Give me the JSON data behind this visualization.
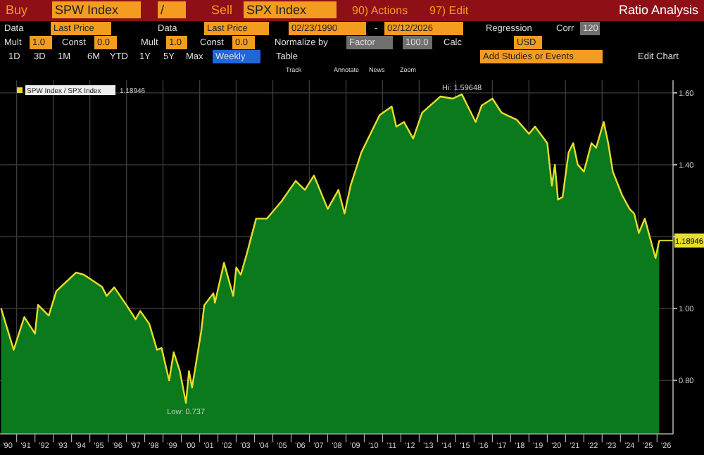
{
  "chart_data": {
    "type": "area",
    "title": "Ratio Analysis",
    "annotations": [
      "Buy",
      "SPW Index",
      "/",
      "Sell",
      "SPX Index",
      "90) Actions",
      "97) Edit",
      "Data",
      "Last Price",
      "Data",
      "Last Price",
      "02/23/1990",
      "-",
      "02/12/2026",
      "Regression",
      "Corr",
      "120",
      "Mult",
      "1.0",
      "Const",
      "0.0",
      "Mult",
      "1.0",
      "Const",
      "0.0",
      "Normalize by",
      "Factor",
      "100.0",
      "Calc",
      "USD",
      "1D",
      "3D",
      "1M",
      "6M",
      "YTD",
      "1Y",
      "5Y",
      "Max",
      "Weekly",
      "Table",
      "Add Studies or Events",
      "Edit Chart",
      "Track",
      "Annotate",
      "News",
      "Zoom",
      "1.18946",
      {
        "text": "Low: 0.737",
        "x": "2000-04",
        "y": 0.737
      },
      {
        "text": "Hi: 1.59648",
        "x": "2015-05",
        "y": 1.596
      },
      {
        "text": "1.18946",
        "x": "2026-02-12",
        "y": 1.189
      }
    ],
    "legend": "top left",
    "grid": true,
    "xlim": [
      "1990-02-01",
      "2026-11-15"
    ],
    "xticks": [
      {
        "value": "1990-07-01",
        "label": "'90"
      },
      {
        "value": "1991-07-01",
        "label": "'91"
      },
      {
        "value": "1992-07-01",
        "label": "'92"
      },
      {
        "value": "1993-07-01",
        "label": "'93"
      },
      {
        "value": "1994-07-01",
        "label": "'94"
      },
      {
        "value": "1995-07-01",
        "label": "'95"
      },
      {
        "value": "1996-07-01",
        "label": "'96"
      },
      {
        "value": "1997-07-01",
        "label": "'97"
      },
      {
        "value": "1998-07-01",
        "label": "'98"
      },
      {
        "value": "1999-07-01",
        "label": "'99"
      },
      {
        "value": "2000-07-01",
        "label": "'00"
      },
      {
        "value": "2001-07-01",
        "label": "'01"
      },
      {
        "value": "2002-07-01",
        "label": "'02"
      },
      {
        "value": "2003-07-01",
        "label": "'03"
      },
      {
        "value": "2004-07-01",
        "label": "'04"
      },
      {
        "value": "2005-07-01",
        "label": "'05"
      },
      {
        "value": "2006-07-01",
        "label": "'06"
      },
      {
        "value": "2007-07-01",
        "label": "'07"
      },
      {
        "value": "2008-07-01",
        "label": "'08"
      },
      {
        "value": "2009-07-01",
        "label": "'09"
      },
      {
        "value": "2010-07-01",
        "label": "'10"
      },
      {
        "value": "2011-07-01",
        "label": "'11"
      },
      {
        "value": "2012-07-01",
        "label": "'12"
      },
      {
        "value": "2013-07-01",
        "label": "'13"
      },
      {
        "value": "2014-07-01",
        "label": "'14"
      },
      {
        "value": "2015-07-01",
        "label": "'15"
      },
      {
        "value": "2016-07-01",
        "label": "'16"
      },
      {
        "value": "2017-07-01",
        "label": "'17"
      },
      {
        "value": "2018-07-01",
        "label": "'18"
      },
      {
        "value": "2019-07-01",
        "label": "'19"
      },
      {
        "value": "2020-07-01",
        "label": "'20"
      },
      {
        "value": "2021-07-01",
        "label": "'21"
      },
      {
        "value": "2022-07-01",
        "label": "'22"
      },
      {
        "value": "2023-07-01",
        "label": "'23"
      },
      {
        "value": "2024-07-01",
        "label": "'24"
      },
      {
        "value": "2025-07-01",
        "label": "'25"
      },
      {
        "value": "2026-07-01",
        "label": "'26"
      }
    ],
    "ylim": [
      0.651,
      1.635
    ],
    "yticks": [
      {
        "value": 0.8,
        "label": "0.80"
      },
      {
        "value": 1.0,
        "label": "1.00"
      },
      {
        "value": 1.2,
        "label": null
      },
      {
        "value": 1.4,
        "label": "1.40"
      },
      {
        "value": 1.6,
        "label": "1.60"
      }
    ],
    "x": [
      "1990-02-23",
      "1990-11",
      "1991-06",
      "1992-01",
      "1992-03",
      "1992-10",
      "1993-03",
      "1994-04",
      "1994-09",
      "1995-09",
      "1995-12",
      "1996-05",
      "1997-01",
      "1997-07",
      "1997-10",
      "1998-04",
      "1998-09",
      "1998-12",
      "1999-05",
      "1999-08",
      "1999-12",
      "2000-04",
      "2000-06",
      "2000-08",
      "2001-02",
      "2001-04",
      "2001-10",
      "2001-11",
      "2002-05",
      "2002-11",
      "2003-01",
      "2003-04",
      "2003-08",
      "2004-02",
      "2004-09",
      "2005-07",
      "2006-04",
      "2006-10",
      "2007-04",
      "2008-01",
      "2008-08",
      "2008-12",
      "2009-04",
      "2009-11",
      "2010-11",
      "2011-07",
      "2011-10",
      "2012-03",
      "2012-09",
      "2013-03",
      "2014-03",
      "2014-11",
      "2015-05",
      "2016-02",
      "2016-06",
      "2017-01",
      "2017-07",
      "2018-05",
      "2019-01",
      "2019-05",
      "2020-01",
      "2020-04",
      "2020-06",
      "2020-08",
      "2020-11",
      "2021-03",
      "2021-06",
      "2021-09",
      "2022-01",
      "2022-06",
      "2022-09",
      "2023-02",
      "2023-05",
      "2023-08",
      "2024-02",
      "2024-07",
      "2024-10",
      "2025-01",
      "2025-05",
      "2025-12",
      "2026-02-12"
    ],
    "series": [
      {
        "color": "#0b7a1c",
        "values": [
          1.0,
          0.885,
          0.976,
          0.93,
          1.01,
          0.98,
          1.048,
          1.1,
          1.094,
          1.06,
          1.035,
          1.059,
          1.009,
          0.97,
          0.993,
          0.957,
          0.885,
          0.89,
          0.8,
          0.878,
          0.826,
          0.737,
          0.826,
          0.78,
          0.937,
          1.009,
          1.042,
          1.016,
          1.127,
          1.035,
          1.114,
          1.094,
          1.153,
          1.25,
          1.25,
          1.3,
          1.355,
          1.33,
          1.37,
          1.277,
          1.33,
          1.264,
          1.342,
          1.434,
          1.538,
          1.562,
          1.506,
          1.519,
          1.473,
          1.545,
          1.59,
          1.584,
          1.596,
          1.519,
          1.565,
          1.584,
          1.545,
          1.525,
          1.486,
          1.506,
          1.46,
          1.342,
          1.4,
          1.303,
          1.31,
          1.434,
          1.46,
          1.4,
          1.381,
          1.46,
          1.447,
          1.519,
          1.46,
          1.381,
          1.316,
          1.277,
          1.264,
          1.21,
          1.25,
          1.14,
          1.189
        ]
      },
      {
        "type": "line",
        "name": "SPW Index / SPX Index",
        "color": "#e8dc2e",
        "values": [
          1.0,
          0.885,
          0.976,
          0.93,
          1.01,
          0.98,
          1.048,
          1.1,
          1.094,
          1.06,
          1.035,
          1.059,
          1.009,
          0.97,
          0.993,
          0.957,
          0.885,
          0.89,
          0.8,
          0.878,
          0.826,
          0.737,
          0.826,
          0.78,
          0.937,
          1.009,
          1.042,
          1.016,
          1.127,
          1.035,
          1.114,
          1.094,
          1.153,
          1.25,
          1.25,
          1.3,
          1.355,
          1.33,
          1.37,
          1.277,
          1.33,
          1.264,
          1.342,
          1.434,
          1.538,
          1.562,
          1.506,
          1.519,
          1.473,
          1.545,
          1.59,
          1.584,
          1.596,
          1.519,
          1.565,
          1.584,
          1.545,
          1.525,
          1.486,
          1.506,
          1.46,
          1.342,
          1.4,
          1.303,
          1.31,
          1.434,
          1.46,
          1.4,
          1.381,
          1.46,
          1.447,
          1.519,
          1.46,
          1.381,
          1.316,
          1.277,
          1.264,
          1.21,
          1.25,
          1.14,
          1.189
        ]
      }
    ]
  }
}
